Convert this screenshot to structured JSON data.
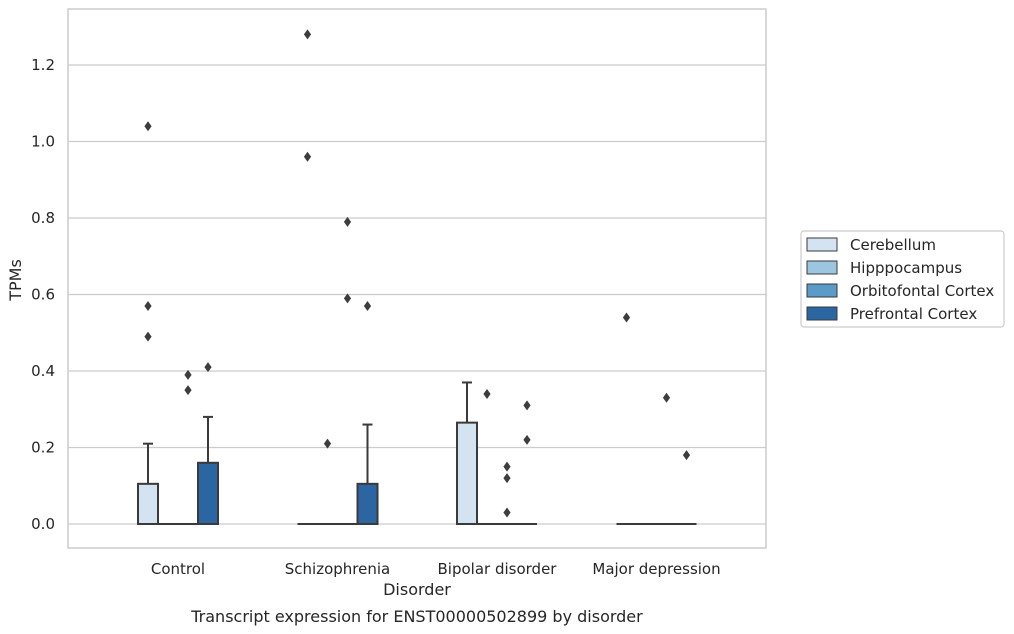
{
  "chart_data": {
    "type": "box",
    "caption": "Transcript expression for ENST00000502899 by disorder",
    "xlabel": "Disorder",
    "ylabel": "TPMs",
    "ylim": [
      -0.06,
      1.35
    ],
    "yticks": [
      0.0,
      0.2,
      0.4,
      0.6,
      0.8,
      1.0,
      1.2
    ],
    "ytick_labels": [
      "0.0",
      "0.2",
      "0.4",
      "0.6",
      "0.8",
      "1.0",
      "1.2"
    ],
    "grid": "horizontal",
    "legend_position": "right",
    "categories": [
      "Control",
      "Schizophrenia",
      "Bipolar disorder",
      "Major depression"
    ],
    "series": [
      {
        "name": "Cerebellum",
        "color": "#d4e3f2",
        "boxes": [
          {
            "q1": 0.0,
            "median": 0.0,
            "q3": 0.105,
            "whisker_low": 0.0,
            "whisker_high": 0.21,
            "outliers": [
              1.04,
              0.57,
              0.49
            ]
          },
          {
            "q1": 0.0,
            "median": 0.0,
            "q3": 0.0,
            "whisker_low": 0.0,
            "whisker_high": 0.0,
            "outliers": [
              1.28,
              0.96
            ]
          },
          {
            "q1": 0.0,
            "median": 0.0,
            "q3": 0.265,
            "whisker_low": 0.0,
            "whisker_high": 0.37,
            "outliers": []
          },
          {
            "q1": 0.0,
            "median": 0.0,
            "q3": 0.0,
            "whisker_low": 0.0,
            "whisker_high": 0.0,
            "outliers": [
              0.54
            ]
          }
        ]
      },
      {
        "name": "Hipppocampus",
        "color": "#9cc5df",
        "boxes": [
          {
            "q1": 0.0,
            "median": 0.0,
            "q3": 0.0,
            "whisker_low": 0.0,
            "whisker_high": 0.0,
            "outliers": []
          },
          {
            "q1": 0.0,
            "median": 0.0,
            "q3": 0.0,
            "whisker_low": 0.0,
            "whisker_high": 0.0,
            "outliers": [
              0.21
            ]
          },
          {
            "q1": 0.0,
            "median": 0.0,
            "q3": 0.0,
            "whisker_low": 0.0,
            "whisker_high": 0.0,
            "outliers": [
              0.34
            ]
          },
          {
            "q1": 0.0,
            "median": 0.0,
            "q3": 0.0,
            "whisker_low": 0.0,
            "whisker_high": 0.0,
            "outliers": []
          }
        ]
      },
      {
        "name": "Orbitofontal Cortex",
        "color": "#5a9bc8",
        "boxes": [
          {
            "q1": 0.0,
            "median": 0.0,
            "q3": 0.0,
            "whisker_low": 0.0,
            "whisker_high": 0.0,
            "outliers": [
              0.39,
              0.35
            ]
          },
          {
            "q1": 0.0,
            "median": 0.0,
            "q3": 0.0,
            "whisker_low": 0.0,
            "whisker_high": 0.0,
            "outliers": [
              0.79,
              0.59
            ]
          },
          {
            "q1": 0.0,
            "median": 0.0,
            "q3": 0.0,
            "whisker_low": 0.0,
            "whisker_high": 0.0,
            "outliers": [
              0.15,
              0.12,
              0.03
            ]
          },
          {
            "q1": 0.0,
            "median": 0.0,
            "q3": 0.0,
            "whisker_low": 0.0,
            "whisker_high": 0.0,
            "outliers": [
              0.33
            ]
          }
        ]
      },
      {
        "name": "Prefrontal Cortex",
        "color": "#2b66a3",
        "boxes": [
          {
            "q1": 0.0,
            "median": 0.0,
            "q3": 0.16,
            "whisker_low": 0.0,
            "whisker_high": 0.28,
            "outliers": [
              0.41
            ]
          },
          {
            "q1": 0.0,
            "median": 0.0,
            "q3": 0.105,
            "whisker_low": 0.0,
            "whisker_high": 0.26,
            "outliers": [
              0.57
            ]
          },
          {
            "q1": 0.0,
            "median": 0.0,
            "q3": 0.0,
            "whisker_low": 0.0,
            "whisker_high": 0.0,
            "outliers": [
              0.31,
              0.22
            ]
          },
          {
            "q1": 0.0,
            "median": 0.0,
            "q3": 0.0,
            "whisker_low": 0.0,
            "whisker_high": 0.0,
            "outliers": [
              0.18
            ]
          }
        ]
      }
    ]
  }
}
